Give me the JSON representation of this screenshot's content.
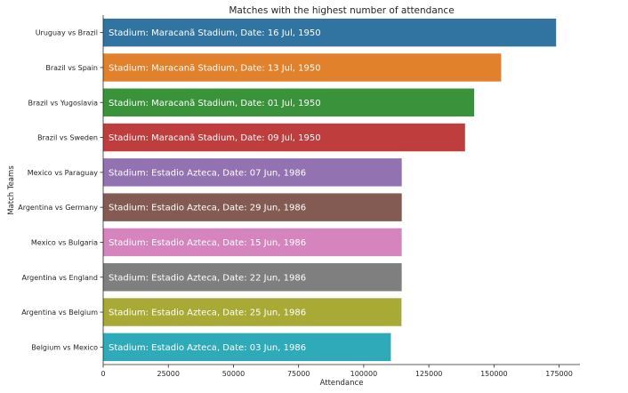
{
  "chart_data": {
    "type": "bar",
    "orientation": "horizontal",
    "title": "Matches with the highest number of attendance",
    "xlabel": "Attendance",
    "ylabel": "Match Teams",
    "xlim": [
      0,
      183000
    ],
    "xticks": [
      0,
      25000,
      50000,
      75000,
      100000,
      125000,
      150000,
      175000
    ],
    "grid": false,
    "categories": [
      "Uruguay vs Brazil",
      "Brazil vs Spain",
      "Brazil vs Yugoslavia",
      "Brazil vs Sweden",
      "Mexico vs Paraguay",
      "Argentina vs Germany",
      "Mexico vs Bulgaria",
      "Argentina vs England",
      "Argentina vs Belgium",
      "Belgium vs Mexico"
    ],
    "values": [
      173850,
      152772,
      142409,
      138886,
      114600,
      114600,
      114580,
      114580,
      114500,
      110420
    ],
    "bar_labels": [
      "Stadium: Maracanã Stadium, Date: 16 Jul, 1950",
      "Stadium: Maracanã Stadium, Date: 13 Jul, 1950",
      "Stadium: Maracanã Stadium, Date: 01 Jul, 1950",
      "Stadium: Maracanã Stadium, Date: 09 Jul, 1950",
      "Stadium: Estadio Azteca, Date: 07 Jun, 1986",
      "Stadium: Estadio Azteca, Date: 29 Jun, 1986",
      "Stadium: Estadio Azteca, Date: 15 Jun, 1986",
      "Stadium: Estadio Azteca, Date: 22 Jun, 1986",
      "Stadium: Estadio Azteca, Date: 25 Jun, 1986",
      "Stadium: Estadio Azteca, Date: 03 Jun, 1986"
    ],
    "colors": [
      "#3274a1",
      "#e1812c",
      "#3a923a",
      "#c03d3e",
      "#9372b2",
      "#845b53",
      "#d684bd",
      "#7f7f7f",
      "#a9aa35",
      "#2eaab8"
    ]
  }
}
